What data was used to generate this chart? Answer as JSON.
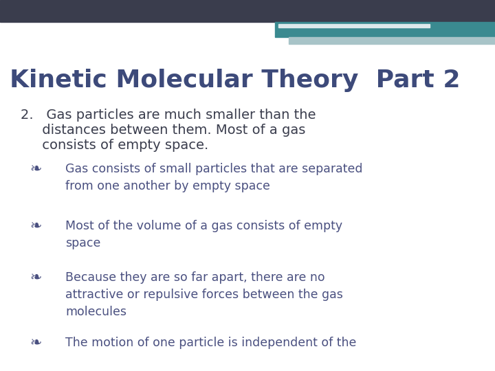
{
  "title": "Kinetic Molecular Theory  Part 2",
  "title_color": "#3d4a7a",
  "title_fontsize": 26,
  "bg_color": "#ffffff",
  "header_bar1_color": "#3a3d4d",
  "header_bar2_color": "#3a8a90",
  "header_bar3_color": "#a8c4c8",
  "main_point_line1": "2.   Gas particles are much smaller than the",
  "main_point_line2": "     distances between them. Most of a gas",
  "main_point_line3": "     consists of empty space.",
  "main_point_color": "#3a3d4d",
  "main_point_fontsize": 14,
  "bullet_symbol": "❧",
  "bullet_color": "#4a5080",
  "bullet_fontsize": 16,
  "text_color": "#4a5080",
  "text_fontsize": 12.5,
  "bullets": [
    "Gas consists of small particles that are separated\nfrom one another by empty space",
    "Most of the volume of a gas consists of empty\nspace",
    "Because they are so far apart, there are no\nattractive or repulsive forces between the gas\nmolecules",
    "The motion of one particle is independent of the"
  ]
}
